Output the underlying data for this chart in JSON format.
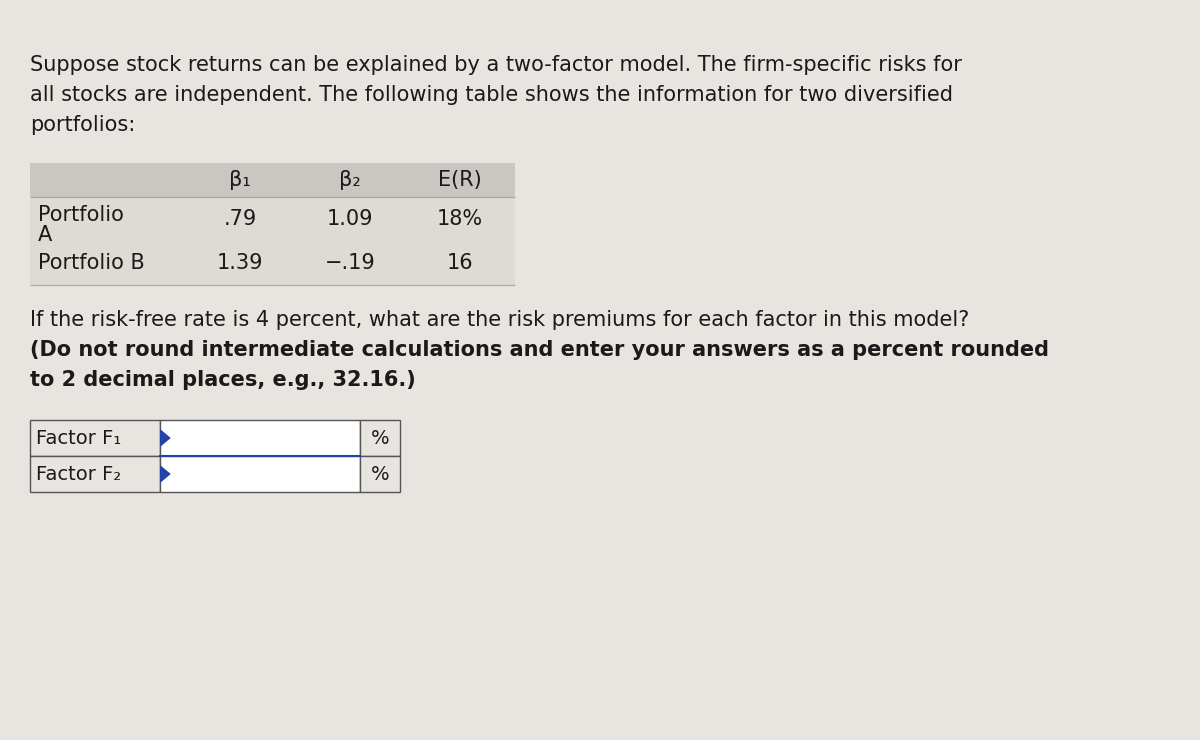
{
  "bg_color": "#e8e5e0",
  "intro_text_lines": [
    "Suppose stock returns can be explained by a two-factor model. The firm-specific risks for",
    "all stocks are independent. The following table shows the information for two diversified",
    "portfolios:"
  ],
  "table1_header": [
    "β₁",
    "β₂",
    "E(R)"
  ],
  "table1_rows": [
    [
      "Portfolio\nA",
      ".79",
      "1.09",
      "18%"
    ],
    [
      "Portfolio B",
      "1.39",
      "−.19",
      "16"
    ]
  ],
  "table1_header_bg": "#cac7c2",
  "table1_row_bg": "#dedad4",
  "question_line1": "If the risk-free rate is 4 percent, what are the risk premiums for each factor in this model?",
  "question_line2": "(Do not round intermediate calculations and enter your answers as a percent rounded",
  "question_line3": "to 2 decimal places, e.g., 32.16.)",
  "factor_labels": [
    "Factor F₁",
    "Factor F₂"
  ],
  "percent_symbol": "%",
  "font_color": "#1a1a1a",
  "table1_line_color": "#aaa8a3",
  "table2_border_color": "#555555",
  "table2_divider_color": "#2244aa",
  "input_bg": "#ffffff",
  "arrow_color": "#2244aa"
}
